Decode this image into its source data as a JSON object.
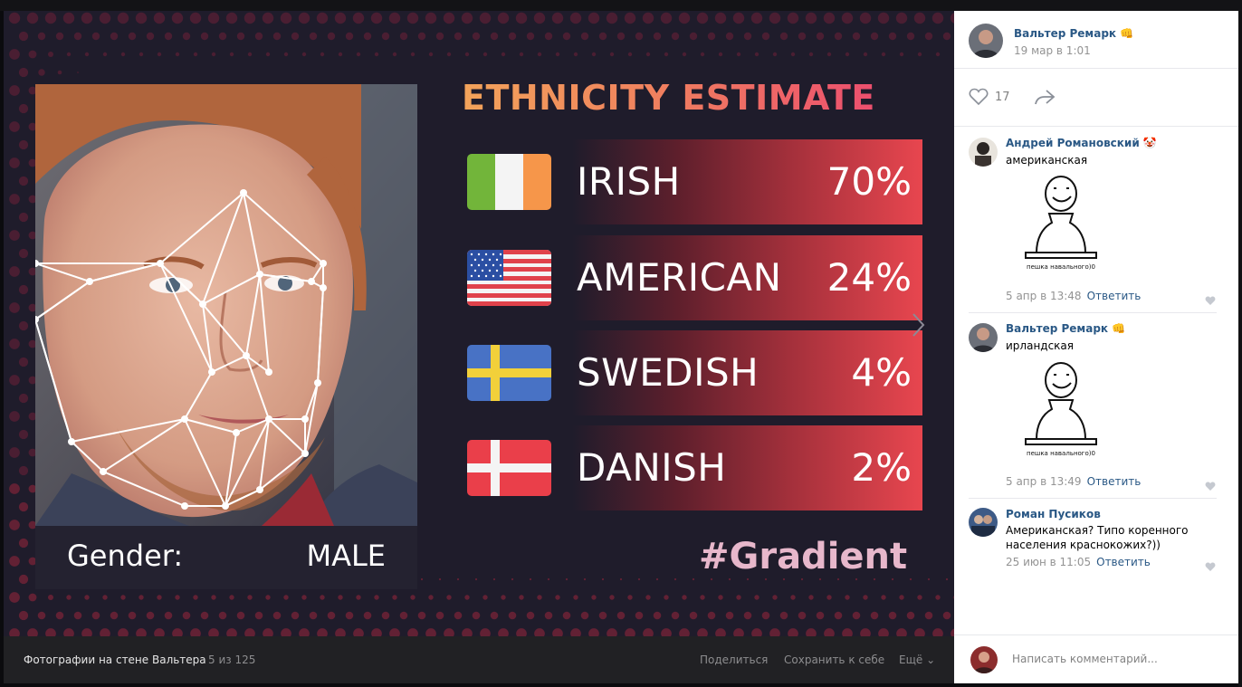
{
  "viewer": {
    "image": {
      "title": "ETHNICITY ESTIMATE",
      "rows": [
        {
          "flag": "ireland-flag",
          "name": "IRISH",
          "percent": "70%"
        },
        {
          "flag": "usa-flag",
          "name": "AMERICAN",
          "percent": "24%"
        },
        {
          "flag": "sweden-flag",
          "name": "SWEDISH",
          "percent": "4%"
        },
        {
          "flag": "denmark-flag",
          "name": "DANISH",
          "percent": "2%"
        }
      ],
      "gender_label": "Gender:",
      "gender_value": "MALE",
      "hashtag": "#Gradient"
    },
    "bottom": {
      "album": "Фотографии на стене Вальтера",
      "counter": "5 из 125",
      "share": "Поделиться",
      "save": "Сохранить к себе",
      "more": "Ещё ⌄"
    }
  },
  "post": {
    "author": "Вальтер Ремарк",
    "author_emoji": "👊",
    "date": "19 мар в 1:01",
    "likes": "17"
  },
  "comments": [
    {
      "author": "Андрей Романовский",
      "emoji": "🤡",
      "text": "американская",
      "sticker_caption": "пешка навального)0",
      "date": "5 апр в 13:48",
      "reply": "Ответить"
    },
    {
      "author": "Вальтер Ремарк",
      "emoji": "👊",
      "text": "ирландская",
      "sticker_caption": "пешка навального)0",
      "date": "5 апр в 13:49",
      "reply": "Ответить"
    },
    {
      "author": "Роман Пусиков",
      "emoji": "",
      "text": "Американская? Типо коренного населения краснокожих?))",
      "date": "25 июн в 11:05",
      "reply": "Ответить"
    }
  ],
  "write_placeholder": "Написать комментарий...",
  "colors": {
    "link": "#2a5885",
    "accent_red": "#e8464f",
    "hashtag": "#e7b7cb"
  }
}
